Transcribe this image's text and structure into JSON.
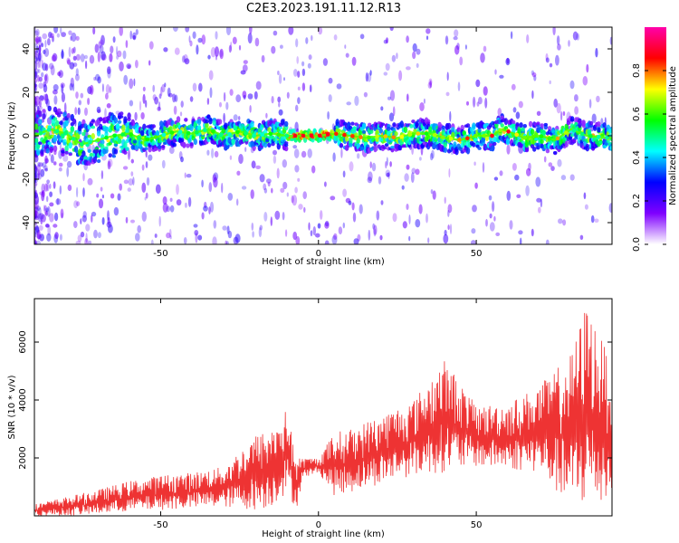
{
  "title": "C2E3.2023.191.11.12.R13",
  "chart_data": [
    {
      "type": "heatmap",
      "xlabel": "Height of straight line (km)",
      "ylabel": "Frequency (Hz)",
      "xlim": [
        -90,
        93
      ],
      "ylim": [
        -50,
        50
      ],
      "x_ticks": [
        "-50",
        "0",
        "50"
      ],
      "y_ticks": [
        "-40",
        "-20",
        "0",
        "20",
        "40"
      ],
      "colorbar_label": "Normalized spectral amplitude",
      "colorbar_ticks": [
        "0.0",
        "0.2",
        "0.4",
        "0.6",
        "0.8"
      ],
      "colorbar_range": [
        0,
        1
      ],
      "colormap": [
        "#ffffff",
        "#7f00ff",
        "#0000ff",
        "#00ffff",
        "#00ff00",
        "#ffff00",
        "#ff0000",
        "#ff00aa"
      ],
      "ridge_frequency": [
        {
          "x": -90,
          "f": 0
        },
        {
          "x": -85,
          "f": 3
        },
        {
          "x": -80,
          "f": 1
        },
        {
          "x": -75,
          "f": -4
        },
        {
          "x": -70,
          "f": -2
        },
        {
          "x": -65,
          "f": 0
        },
        {
          "x": -60,
          "f": 1
        },
        {
          "x": -55,
          "f": -2
        },
        {
          "x": -50,
          "f": 0
        },
        {
          "x": -45,
          "f": 2
        },
        {
          "x": -40,
          "f": 1
        },
        {
          "x": -35,
          "f": 3
        },
        {
          "x": -30,
          "f": 0
        },
        {
          "x": -25,
          "f": 2
        },
        {
          "x": -20,
          "f": 0
        },
        {
          "x": -15,
          "f": 1
        },
        {
          "x": -10,
          "f": 0
        },
        {
          "x": 0,
          "f": 0
        },
        {
          "x": 5,
          "f": 1
        },
        {
          "x": 10,
          "f": 0
        },
        {
          "x": 15,
          "f": -1
        },
        {
          "x": 20,
          "f": 0
        },
        {
          "x": 25,
          "f": -1
        },
        {
          "x": 30,
          "f": 1
        },
        {
          "x": 35,
          "f": 1
        },
        {
          "x": 40,
          "f": -1
        },
        {
          "x": 45,
          "f": -2
        },
        {
          "x": 50,
          "f": 0
        },
        {
          "x": 55,
          "f": 0
        },
        {
          "x": 58,
          "f": 3
        },
        {
          "x": 62,
          "f": 1
        },
        {
          "x": 65,
          "f": -1
        },
        {
          "x": 70,
          "f": 0
        },
        {
          "x": 75,
          "f": -2
        },
        {
          "x": 80,
          "f": 3
        },
        {
          "x": 85,
          "f": 0
        },
        {
          "x": 93,
          "f": -1
        }
      ],
      "max_amplitude_span": [
        -10,
        5
      ]
    },
    {
      "type": "line",
      "xlabel": "Height of straight line (km)",
      "ylabel": "SNR (10 * v/v)",
      "xlim": [
        -90,
        93
      ],
      "ylim": [
        0,
        7500
      ],
      "x_ticks": [
        "-50",
        "0",
        "50"
      ],
      "y_ticks": [
        "2000",
        "4000",
        "6000"
      ],
      "color": "#ee3333",
      "envelope": [
        {
          "x": -90,
          "low": 0,
          "high": 400
        },
        {
          "x": -80,
          "low": 0,
          "high": 650
        },
        {
          "x": -70,
          "low": 50,
          "high": 900
        },
        {
          "x": -60,
          "low": 150,
          "high": 1200
        },
        {
          "x": -50,
          "low": 200,
          "high": 1400
        },
        {
          "x": -40,
          "low": 250,
          "high": 1500
        },
        {
          "x": -30,
          "low": 300,
          "high": 1700
        },
        {
          "x": -20,
          "low": 200,
          "high": 2800
        },
        {
          "x": -15,
          "low": 300,
          "high": 3000
        },
        {
          "x": -10,
          "low": 800,
          "high": 3700
        },
        {
          "x": -7,
          "low": 200,
          "high": 2000
        },
        {
          "x": -5,
          "low": 1300,
          "high": 2000
        },
        {
          "x": 0,
          "low": 1500,
          "high": 2000
        },
        {
          "x": 5,
          "low": 700,
          "high": 2900
        },
        {
          "x": 10,
          "low": 800,
          "high": 3000
        },
        {
          "x": 20,
          "low": 1100,
          "high": 3500
        },
        {
          "x": 30,
          "low": 1400,
          "high": 4000
        },
        {
          "x": 40,
          "low": 1500,
          "high": 5400
        },
        {
          "x": 50,
          "low": 1700,
          "high": 3800
        },
        {
          "x": 60,
          "low": 1600,
          "high": 3900
        },
        {
          "x": 70,
          "low": 1500,
          "high": 4500
        },
        {
          "x": 80,
          "low": 200,
          "high": 5600
        },
        {
          "x": 85,
          "low": 300,
          "high": 7400
        },
        {
          "x": 90,
          "low": 300,
          "high": 6000
        },
        {
          "x": 93,
          "low": 500,
          "high": 5500
        }
      ]
    }
  ]
}
